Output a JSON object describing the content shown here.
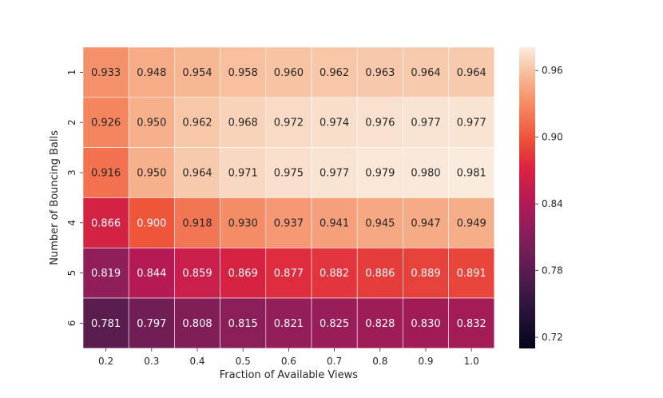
{
  "chart_data": {
    "type": "heatmap",
    "title": "",
    "xlabel": "Fraction of Available Views",
    "ylabel": "Number of Bouncing Balls",
    "x_categories": [
      "0.2",
      "0.3",
      "0.4",
      "0.5",
      "0.6",
      "0.7",
      "0.8",
      "0.9",
      "1.0"
    ],
    "y_categories": [
      "1",
      "2",
      "3",
      "4",
      "5",
      "6"
    ],
    "values": [
      [
        0.933,
        0.948,
        0.954,
        0.958,
        0.96,
        0.962,
        0.963,
        0.964,
        0.964
      ],
      [
        0.926,
        0.95,
        0.962,
        0.968,
        0.972,
        0.974,
        0.976,
        0.977,
        0.977
      ],
      [
        0.916,
        0.95,
        0.964,
        0.971,
        0.975,
        0.977,
        0.979,
        0.98,
        0.981
      ],
      [
        0.866,
        0.9,
        0.918,
        0.93,
        0.937,
        0.941,
        0.945,
        0.947,
        0.949
      ],
      [
        0.819,
        0.844,
        0.859,
        0.869,
        0.877,
        0.882,
        0.886,
        0.889,
        0.891
      ],
      [
        0.781,
        0.797,
        0.808,
        0.815,
        0.821,
        0.825,
        0.828,
        0.83,
        0.832
      ]
    ],
    "annotation_format": "3 decimals",
    "colormap": "rocket",
    "colorbar": {
      "range": [
        0.71,
        0.981
      ],
      "ticks": [
        0.72,
        0.78,
        0.84,
        0.9,
        0.96
      ],
      "tick_labels": [
        "0.72",
        "0.78",
        "0.84",
        "0.90",
        "0.96"
      ],
      "placement": "right"
    },
    "grid": false
  }
}
